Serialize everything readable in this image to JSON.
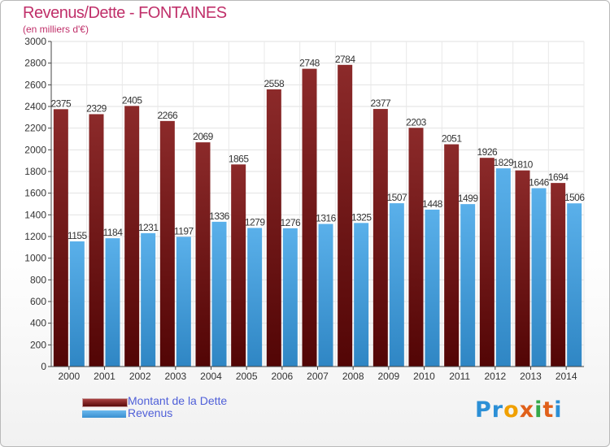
{
  "title": "Revenus/Dette - FONTAINES",
  "subtitle": "(en milliers d'€)",
  "logo": {
    "letters": [
      "P",
      "r",
      "o",
      "x",
      "i",
      "t",
      "i"
    ],
    "colors": [
      "#2b8fd6",
      "#2b8fd6",
      "#f0a000",
      "#e0601a",
      "#35a84a",
      "#e0601a",
      "#2b8fd6"
    ]
  },
  "chart_data": {
    "type": "bar",
    "categories": [
      "2000",
      "2001",
      "2002",
      "2003",
      "2004",
      "2005",
      "2006",
      "2007",
      "2008",
      "2009",
      "2010",
      "2011",
      "2012",
      "2013",
      "2014"
    ],
    "series": [
      {
        "name": "Montant de la Dette",
        "color": "#7a1a1a",
        "values": [
          2375,
          2329,
          2405,
          2266,
          2069,
          1865,
          2558,
          2748,
          2784,
          2377,
          2203,
          2051,
          1926,
          1810,
          1694
        ]
      },
      {
        "name": "Revenus",
        "color": "#4aa3e0",
        "values": [
          1155,
          1184,
          1231,
          1197,
          1336,
          1279,
          1276,
          1316,
          1325,
          1507,
          1448,
          1499,
          1829,
          1646,
          1506
        ]
      }
    ],
    "ylim": [
      0,
      3000
    ],
    "yticks": [
      "0",
      "200",
      "400",
      "600",
      "800",
      "1000",
      "1200",
      "1400",
      "1600",
      "1800",
      "2000",
      "2200",
      "2400",
      "2600",
      "2800",
      "3000"
    ],
    "grid": true,
    "legend_position": "bottom-left"
  }
}
